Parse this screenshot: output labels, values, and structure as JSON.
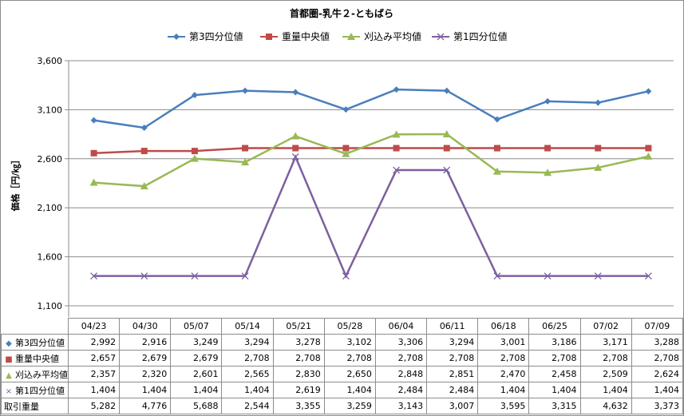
{
  "chart_data": {
    "type": "line",
    "title": "首都圏-乳牛２-ともばら",
    "ylabel": "価格［円/㎏］",
    "xlabel": "",
    "ylim": [
      1100,
      3600
    ],
    "yticks": [
      "1,100",
      "1,600",
      "2,100",
      "2,600",
      "3,100",
      "3,600"
    ],
    "ytick_values": [
      1100,
      1600,
      2100,
      2600,
      3100,
      3600
    ],
    "grid": true,
    "legend_position": "top",
    "categories": [
      "04/23",
      "04/30",
      "05/07",
      "05/14",
      "05/21",
      "05/28",
      "06/04",
      "06/11",
      "06/18",
      "06/25",
      "07/02",
      "07/09"
    ],
    "series": [
      {
        "name": "第3四分位値",
        "color": "#4a7ebb",
        "marker": "diamond",
        "values": [
          2992,
          2916,
          3249,
          3294,
          3278,
          3102,
          3306,
          3294,
          3001,
          3186,
          3171,
          3288
        ],
        "labels": [
          "2,992",
          "2,916",
          "3,249",
          "3,294",
          "3,278",
          "3,102",
          "3,306",
          "3,294",
          "3,001",
          "3,186",
          "3,171",
          "3,288"
        ]
      },
      {
        "name": "重量中央値",
        "color": "#be4b48",
        "marker": "square",
        "values": [
          2657,
          2679,
          2679,
          2708,
          2708,
          2708,
          2708,
          2708,
          2708,
          2708,
          2708,
          2708
        ],
        "labels": [
          "2,657",
          "2,679",
          "2,679",
          "2,708",
          "2,708",
          "2,708",
          "2,708",
          "2,708",
          "2,708",
          "2,708",
          "2,708",
          "2,708"
        ]
      },
      {
        "name": "刈込み平均値",
        "color": "#98b954",
        "marker": "triangle",
        "values": [
          2357,
          2320,
          2601,
          2565,
          2830,
          2650,
          2848,
          2851,
          2470,
          2458,
          2509,
          2624
        ],
        "labels": [
          "2,357",
          "2,320",
          "2,601",
          "2,565",
          "2,830",
          "2,650",
          "2,848",
          "2,851",
          "2,470",
          "2,458",
          "2,509",
          "2,624"
        ]
      },
      {
        "name": "第1四分位値",
        "color": "#7d60a0",
        "marker": "x",
        "values": [
          1404,
          1404,
          1404,
          1404,
          2619,
          1404,
          2484,
          2484,
          1404,
          1404,
          1404,
          1404
        ],
        "labels": [
          "1,404",
          "1,404",
          "1,404",
          "1,404",
          "2,619",
          "1,404",
          "2,484",
          "2,484",
          "1,404",
          "1,404",
          "1,404",
          "1,404"
        ]
      }
    ],
    "extra_rows": [
      {
        "name": "取引重量",
        "labels": [
          "5,282",
          "4,776",
          "5,688",
          "2,544",
          "3,355",
          "3,259",
          "3,143",
          "3,007",
          "3,595",
          "3,315",
          "4,632",
          "3,373"
        ]
      }
    ]
  }
}
